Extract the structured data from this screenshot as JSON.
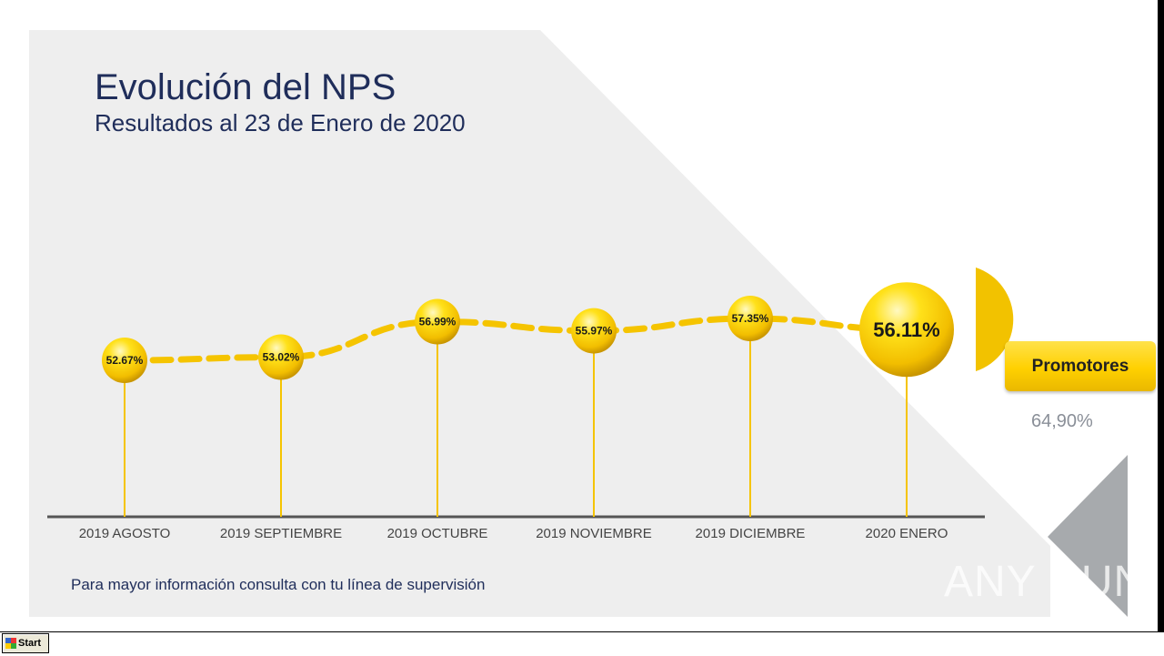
{
  "title": "Evolución del NPS",
  "subtitle": "Resultados al 23 de Enero de 2020",
  "footer_note": "Para mayor información consulta con tu línea de supervisión",
  "promotores": {
    "label": "Promotores",
    "value": "64,90%"
  },
  "watermark": "ANY RUN",
  "taskbar": {
    "start_label": "Start"
  },
  "colors": {
    "accent": "#ffd200",
    "line": "#f5c400",
    "title": "#1f2d5a",
    "panel": "#eeeeee"
  },
  "chart_data": {
    "type": "line",
    "categories": [
      "2019 AGOSTO",
      "2019 SEPTIEMBRE",
      "2019 OCTUBRE",
      "2019 NOVIEMBRE",
      "2019 DICIEMBRE",
      "2020 ENERO"
    ],
    "values": [
      52.67,
      53.02,
      56.99,
      55.97,
      57.35,
      56.11
    ],
    "data_labels": [
      "52.67%",
      "53.02%",
      "56.99%",
      "55.97%",
      "57.35%",
      "56.11%"
    ],
    "title": "",
    "xlabel": "",
    "ylabel": "",
    "grid": false,
    "highlight_index": 5
  }
}
